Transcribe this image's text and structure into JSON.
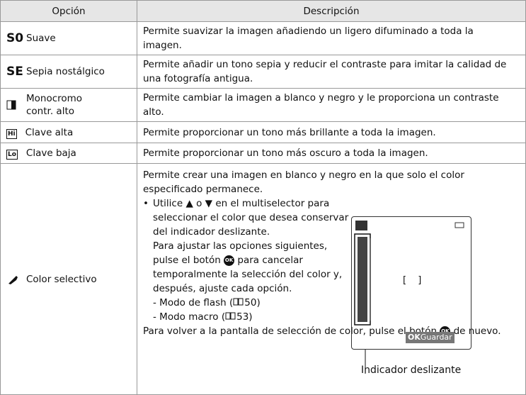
{
  "table": {
    "header": [
      "Opción",
      "Descripción"
    ],
    "rows": [
      {
        "icon": "S0",
        "option": "Suave",
        "description": "Permite suavizar la imagen añadiendo un ligero difuminado a toda la imagen."
      },
      {
        "icon": "SE",
        "option": "Sepia nostálgico",
        "description": "Permite añadir un tono sepia y reducir el contraste para imitar la calidad de una fotografía antigua."
      },
      {
        "option": "Monocromo contr. alto",
        "description": "Permite cambiar la imagen a blanco y negro y le proporciona un contraste alto."
      },
      {
        "icon": "Hi",
        "option": "Clave alta",
        "description": "Permite proporcionar un tono más brillante a toda la imagen."
      },
      {
        "icon": "Lo",
        "option": "Clave baja",
        "description": "Permite proporcionar un tono más oscuro a toda la imagen."
      },
      {
        "option": "Color selectivo",
        "description": "Permite crear una imagen en blanco y negro en la que solo el color especificado permanece.",
        "bullet": "Utilice ▲ o ▼ en el multiselector para seleccionar el color que desea conservar del indicador deslizante.",
        "adjust_before": "Para ajustar las opciones siguientes, pulse el botón",
        "adjust_after": "para cancelar temporalmente la selección del color y, después, ajuste cada opción.",
        "subitems": [
          {
            "before": "Modo de flash (",
            "after": "50)"
          },
          {
            "before": "Modo macro (",
            "after": "53)"
          }
        ],
        "return_before": "Para volver a la pantalla de selección de color, pulse el botón",
        "return_after": "de nuevo.",
        "button": "OK",
        "screen_brackets": "[ ]",
        "screen_button": "OK",
        "screen_save": "Guardar",
        "caption": "Indicador deslizante"
      }
    ]
  }
}
